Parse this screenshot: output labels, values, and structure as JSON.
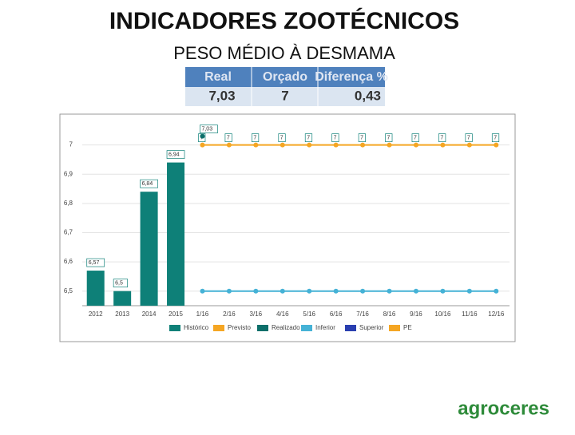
{
  "header": {
    "title": "INDICADORES ZOOTÉCNICOS",
    "subtitle": "PESO MÉDIO À DESMAMA"
  },
  "table": {
    "headers": [
      "Real",
      "Orçado",
      "Diferença %"
    ],
    "rows": [
      [
        "7,03",
        "7",
        "0,43"
      ]
    ]
  },
  "logo": "agroceres",
  "chart_data": {
    "type": "combo",
    "categories": [
      "2012",
      "2013",
      "2014",
      "2015",
      "1/16",
      "2/16",
      "3/16",
      "4/16",
      "5/16",
      "6/16",
      "7/16",
      "8/16",
      "9/16",
      "10/16",
      "11/16",
      "12/16"
    ],
    "series": [
      {
        "name": "Histórico",
        "type": "bar",
        "color": "#0e8078",
        "values": [
          6.57,
          6.5,
          6.84,
          6.94,
          null,
          null,
          null,
          null,
          null,
          null,
          null,
          null,
          null,
          null,
          null,
          null
        ],
        "value_labels": [
          "6,57",
          "6,5",
          "6,84",
          "6,94",
          null,
          null,
          null,
          null,
          null,
          null,
          null,
          null,
          null,
          null,
          null,
          null
        ]
      },
      {
        "name": "Previsto",
        "type": "line",
        "color": "#f5a623",
        "values": [
          null,
          null,
          null,
          null,
          7,
          7,
          7,
          7,
          7,
          7,
          7,
          7,
          7,
          7,
          7,
          7
        ]
      },
      {
        "name": "Realizado",
        "type": "line",
        "color": "#0d6f6a",
        "values": [
          null,
          null,
          null,
          null,
          7.03,
          null,
          null,
          null,
          null,
          null,
          null,
          null,
          null,
          null,
          null,
          null
        ],
        "value_labels": [
          null,
          null,
          null,
          null,
          "7,03",
          null,
          null,
          null,
          null,
          null,
          null,
          null,
          null,
          null,
          null,
          null
        ]
      },
      {
        "name": "Inferior",
        "type": "line",
        "color": "#45b2d6",
        "values": [
          null,
          null,
          null,
          null,
          6.5,
          6.5,
          6.5,
          6.5,
          6.5,
          6.5,
          6.5,
          6.5,
          6.5,
          6.5,
          6.5,
          6.5
        ]
      },
      {
        "name": "Superior",
        "type": "line",
        "color": "#2a3fb0",
        "values": [
          null,
          null,
          null,
          null,
          null,
          null,
          null,
          null,
          null,
          null,
          null,
          null,
          null,
          null,
          null,
          null
        ]
      },
      {
        "name": "PE",
        "type": "legend",
        "color": "#f5a623",
        "values": [
          null,
          null,
          null,
          null,
          null,
          null,
          null,
          null,
          null,
          null,
          null,
          null,
          null,
          null,
          null,
          null
        ]
      }
    ],
    "ylim": [
      6.45,
      7.1
    ],
    "yticks": [
      {
        "value": 6.5,
        "label": "6,5"
      },
      {
        "value": 6.6,
        "label": "6,6"
      },
      {
        "value": 6.7,
        "label": "6,7"
      },
      {
        "value": 6.8,
        "label": "6,8"
      },
      {
        "value": 6.9,
        "label": "6,9"
      },
      7
    ],
    "grid": true
  }
}
